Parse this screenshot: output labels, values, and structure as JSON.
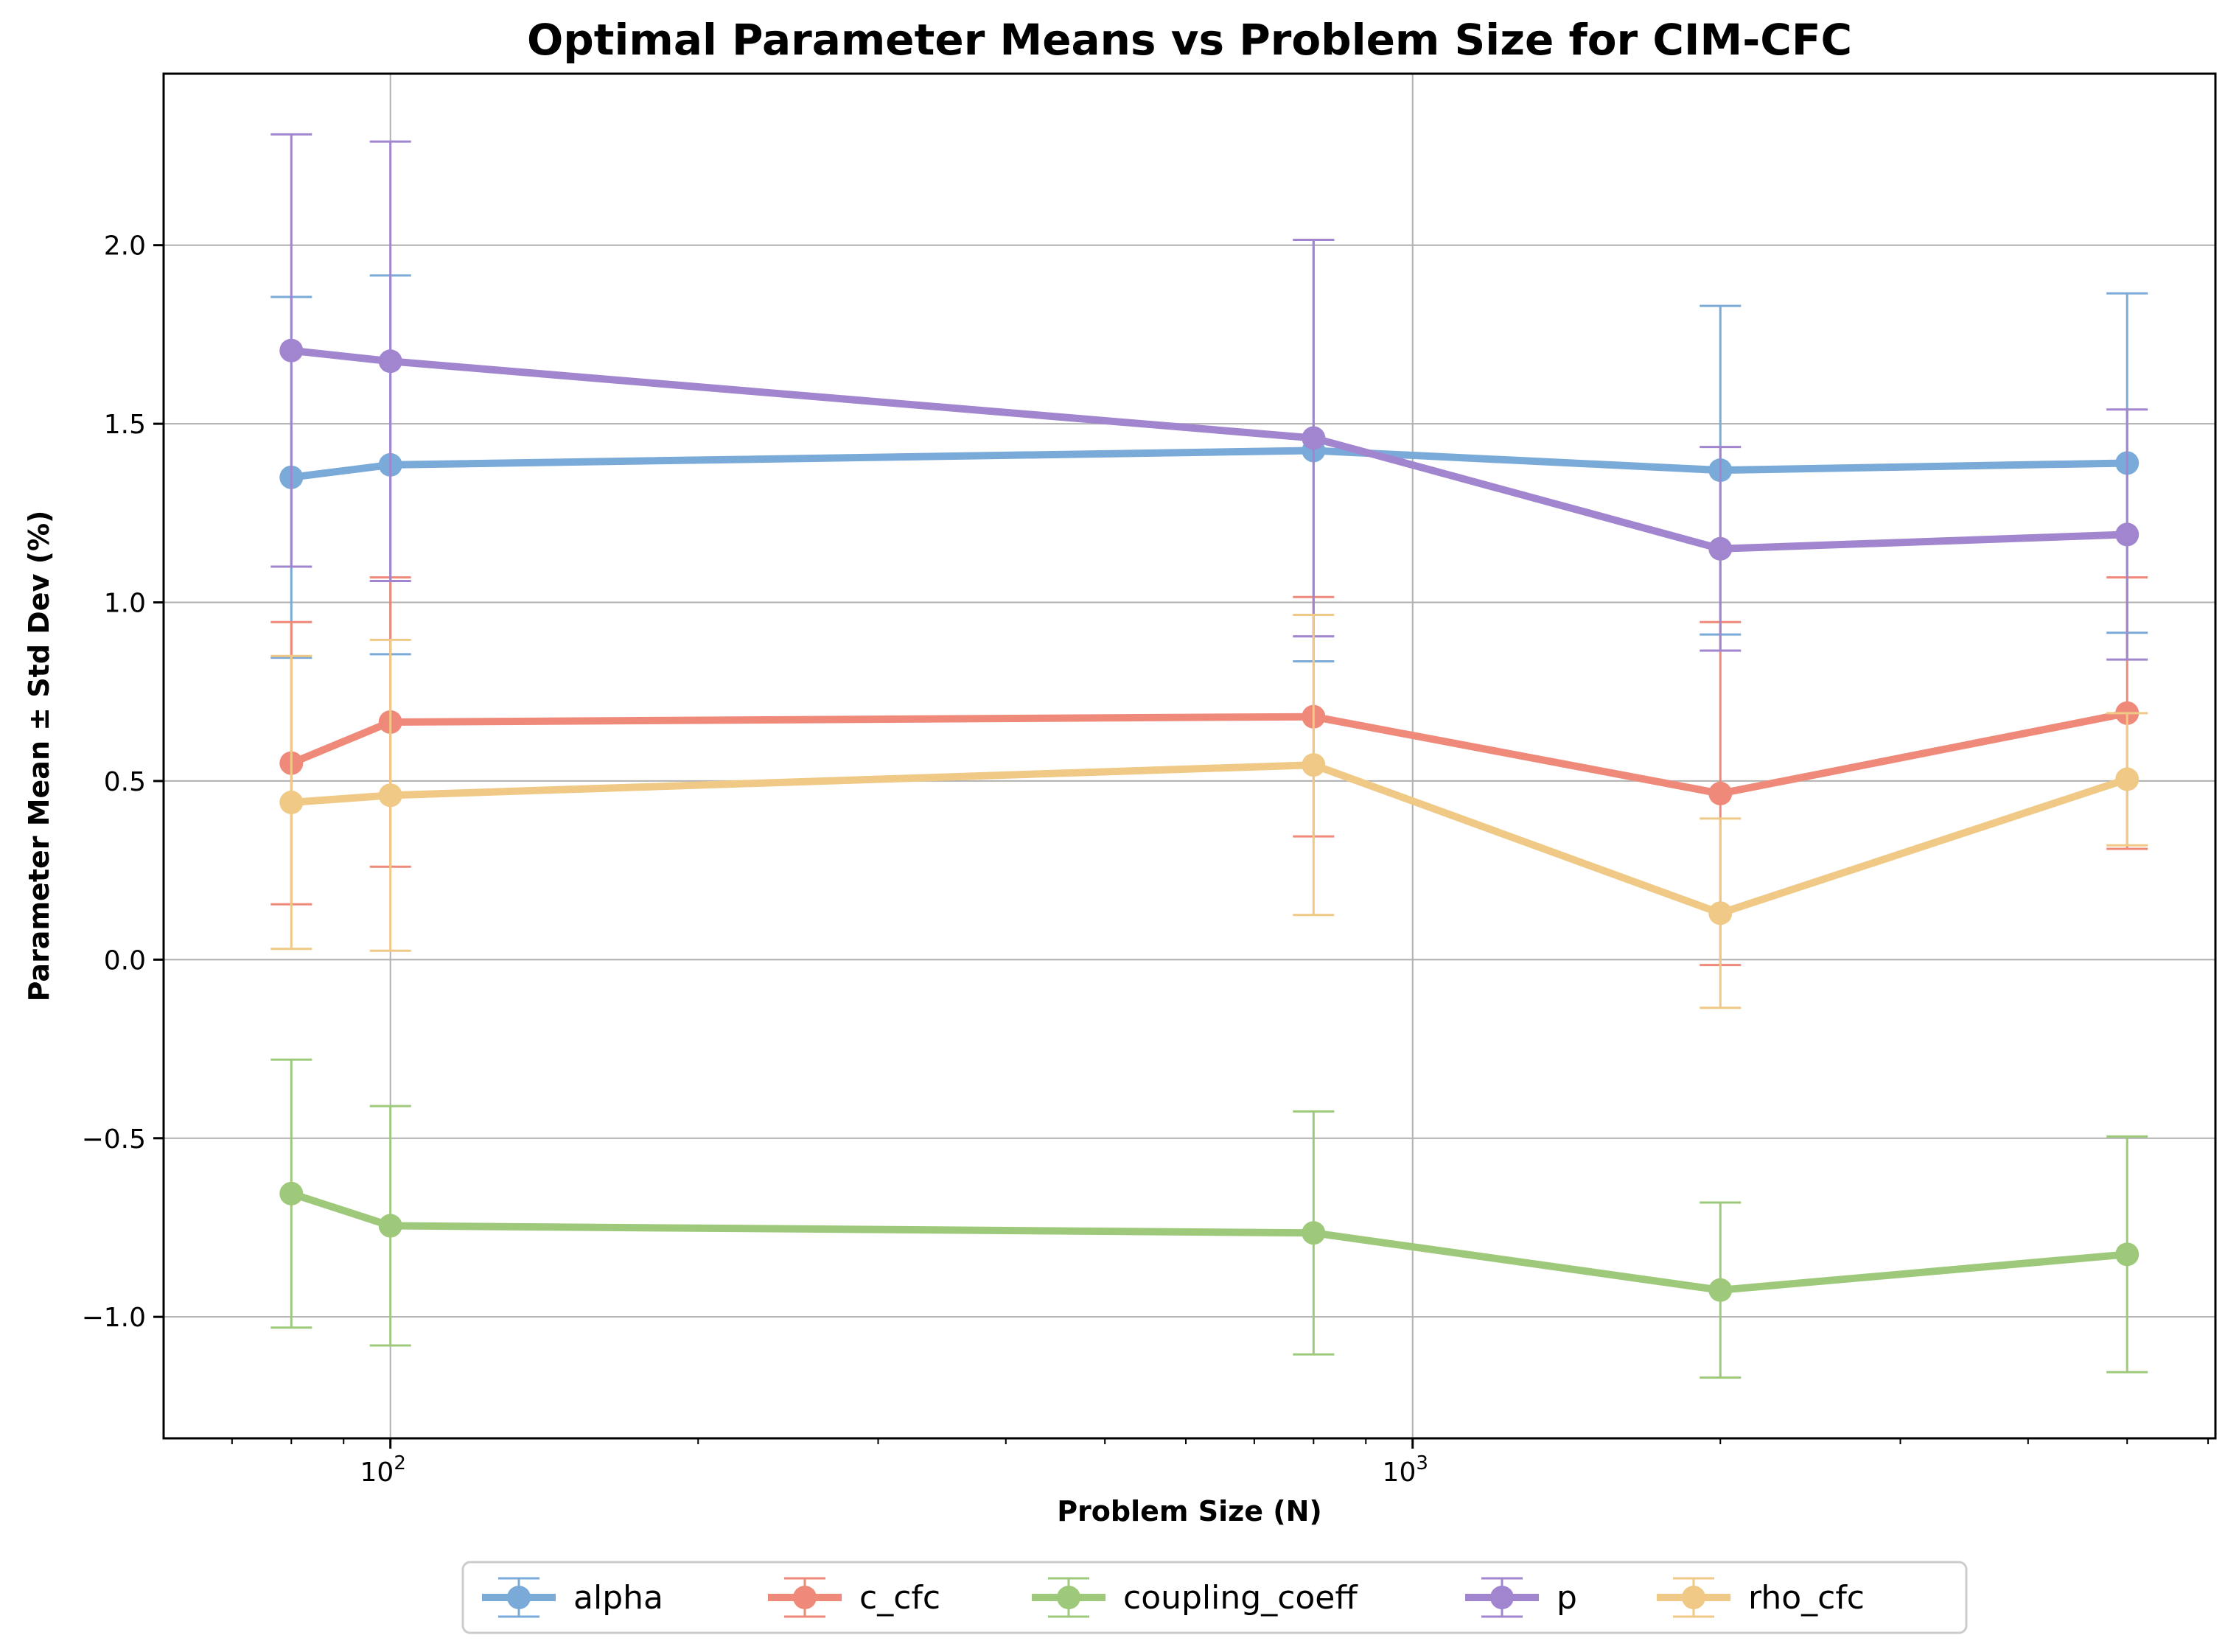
{
  "chart_data": {
    "type": "line",
    "title": "Optimal Parameter Means vs Problem Size for CIM-CFC",
    "xlabel": "Problem Size (N)",
    "ylabel": "Parameter Mean ± Std Dev (%)",
    "xscale": "log",
    "xlim": [
      60,
      6100
    ],
    "ylim": [
      -1.34,
      2.48
    ],
    "x": [
      80,
      100,
      800,
      2000,
      5000
    ],
    "x_tick_labels": [
      "10",
      "10"
    ],
    "x_tick_exponents": [
      "2",
      "3"
    ],
    "x_tick_values": [
      100,
      1000
    ],
    "y_ticks": [
      -1.0,
      -0.5,
      0.0,
      0.5,
      1.0,
      1.5,
      2.0
    ],
    "y_tick_labels": [
      "−1.0",
      "−0.5",
      "0.0",
      "0.5",
      "1.0",
      "1.5",
      "2.0"
    ],
    "grid": true,
    "legend_position": "bottom-center",
    "series": [
      {
        "name": "alpha",
        "color": "#7aaad8",
        "mean": [
          1.35,
          1.385,
          1.425,
          1.37,
          1.39
        ],
        "std": [
          0.505,
          0.53,
          0.59,
          0.46,
          0.475
        ]
      },
      {
        "name": "c_cfc",
        "color": "#ef8a7a",
        "mean": [
          0.55,
          0.665,
          0.68,
          0.465,
          0.69
        ],
        "std": [
          0.395,
          0.405,
          0.335,
          0.48,
          0.38
        ]
      },
      {
        "name": "coupling_coeff",
        "color": "#9ec97b",
        "mean": [
          -0.655,
          -0.745,
          -0.765,
          -0.925,
          -0.825
        ],
        "std": [
          0.375,
          0.335,
          0.34,
          0.245,
          0.33
        ]
      },
      {
        "name": "p",
        "color": "#a186cf",
        "mean": [
          1.705,
          1.675,
          1.46,
          1.15,
          1.19
        ],
        "std": [
          0.605,
          0.615,
          0.555,
          0.285,
          0.35
        ]
      },
      {
        "name": "rho_cfc",
        "color": "#efc985",
        "mean": [
          0.44,
          0.46,
          0.545,
          0.13,
          0.505
        ],
        "std": [
          0.41,
          0.435,
          0.42,
          0.265,
          0.185
        ]
      }
    ]
  }
}
